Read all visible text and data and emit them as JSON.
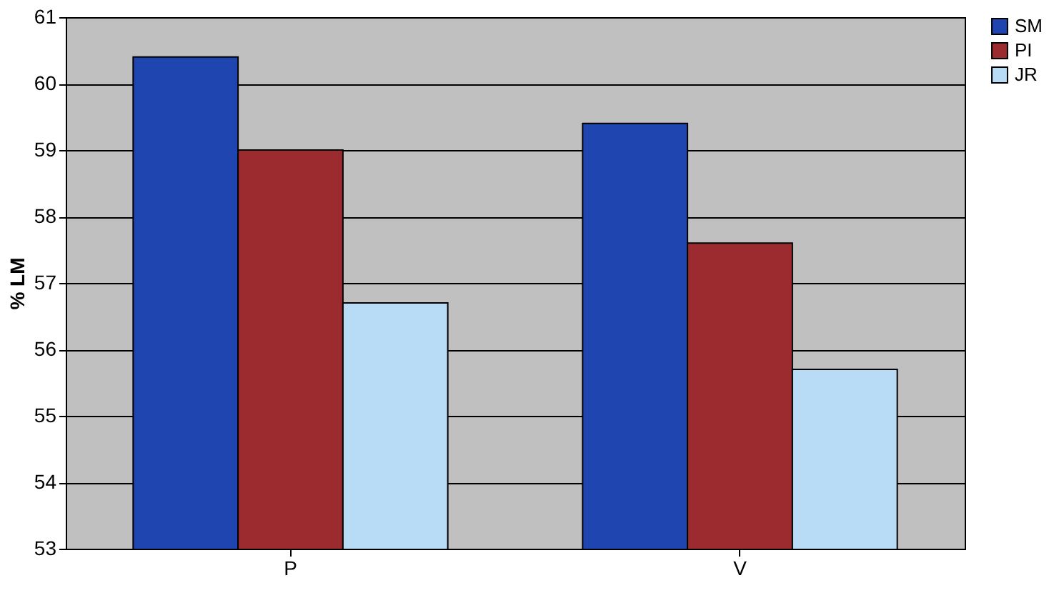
{
  "chart_data": {
    "type": "bar",
    "ylabel": "% LM",
    "categories": [
      "P",
      "V"
    ],
    "series": [
      {
        "name": "SM",
        "color": "#1f45b0",
        "values": [
          60.4,
          59.4
        ]
      },
      {
        "name": "PI",
        "color": "#9b2b2e",
        "values": [
          59.0,
          57.6
        ]
      },
      {
        "name": "JR",
        "color": "#b8dcf6",
        "values": [
          56.7,
          55.7
        ]
      }
    ],
    "ylim": [
      53,
      61
    ],
    "yticks": [
      53,
      54,
      55,
      56,
      57,
      58,
      59,
      60,
      61
    ],
    "grid": "y",
    "legend": "right"
  }
}
